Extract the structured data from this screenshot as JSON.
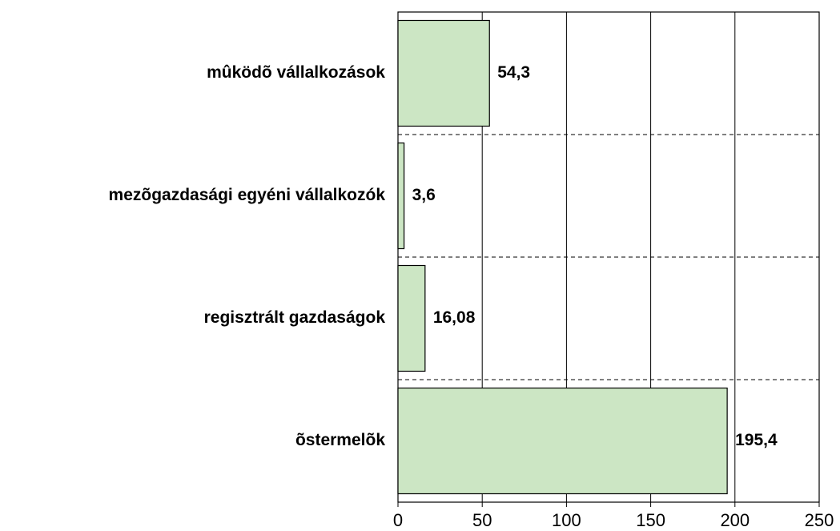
{
  "chart_data": {
    "type": "bar",
    "orientation": "horizontal",
    "categories": [
      "mûködõ vállalkozások",
      "mezõgazdasági egyéni vállalkozók",
      "regisztrált gazdaságok",
      "õstermelõk"
    ],
    "values": [
      54.3,
      3.6,
      16.08,
      195.4
    ],
    "value_labels": [
      "54,3",
      "3,6",
      "16,08",
      "195,4"
    ],
    "color": "#cce6c4",
    "xlim": [
      0,
      250
    ],
    "xticks": [
      0,
      50,
      100,
      150,
      200,
      250
    ],
    "grid": true
  }
}
